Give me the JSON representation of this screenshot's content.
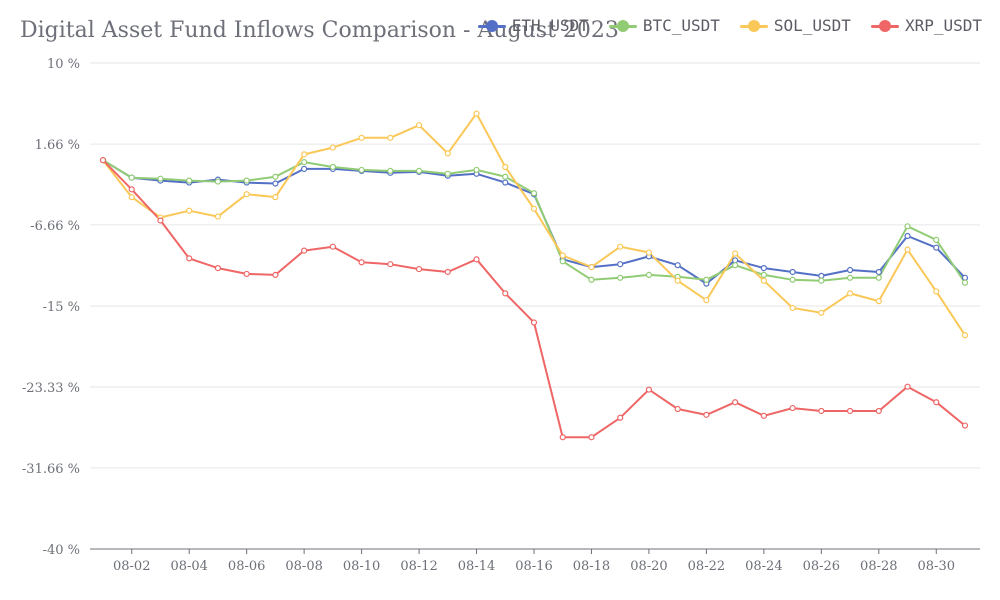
{
  "chart_data": {
    "type": "line",
    "title": "Digital Asset Fund Inflows Comparison - August 2023",
    "ylim": [
      -40,
      10
    ],
    "y_ticks": [
      "10 %",
      "1.66 %",
      "-6.66 %",
      "-15 %",
      "-23.33 %",
      "-31.66 %",
      "-40 %"
    ],
    "y_tick_values": [
      10,
      1.66,
      -6.66,
      -15,
      -23.33,
      -31.66,
      -40
    ],
    "x": [
      "2023-08-01",
      "2023-08-02",
      "2023-08-03",
      "2023-08-04",
      "2023-08-05",
      "2023-08-06",
      "2023-08-07",
      "2023-08-08",
      "2023-08-09",
      "2023-08-10",
      "2023-08-11",
      "2023-08-12",
      "2023-08-13",
      "2023-08-14",
      "2023-08-15",
      "2023-08-16",
      "2023-08-17",
      "2023-08-18",
      "2023-08-19",
      "2023-08-20",
      "2023-08-21",
      "2023-08-22",
      "2023-08-23",
      "2023-08-24",
      "2023-08-25",
      "2023-08-26",
      "2023-08-27",
      "2023-08-28",
      "2023-08-29",
      "2023-08-30",
      "2023-08-31"
    ],
    "x_ticks": [
      "08-02",
      "08-04",
      "08-06",
      "08-08",
      "08-10",
      "08-12",
      "08-14",
      "08-16",
      "08-18",
      "08-20",
      "08-22",
      "08-24",
      "08-26",
      "08-28",
      "08-30"
    ],
    "grid": true,
    "legend_position": "top-right",
    "series": [
      {
        "name": "ETH_USDT",
        "color": "#5470c6",
        "values": [
          0,
          -1.8,
          -2.1,
          -2.3,
          -2.0,
          -2.3,
          -2.4,
          -0.9,
          -0.9,
          -1.1,
          -1.3,
          -1.2,
          -1.6,
          -1.4,
          -2.3,
          -3.5,
          -10.2,
          -11.0,
          -10.7,
          -9.9,
          -10.8,
          -12.7,
          -10.3,
          -11.1,
          -11.5,
          -11.9,
          -11.3,
          -11.5,
          -7.8,
          -9.0,
          -12.1
        ]
      },
      {
        "name": "BTC_USDT",
        "color": "#91cc75",
        "values": [
          0,
          -1.8,
          -1.9,
          -2.1,
          -2.2,
          -2.1,
          -1.7,
          -0.2,
          -0.7,
          -1.0,
          -1.1,
          -1.1,
          -1.4,
          -1.0,
          -1.7,
          -3.4,
          -10.4,
          -12.3,
          -12.1,
          -11.8,
          -12.0,
          -12.3,
          -10.8,
          -11.8,
          -12.3,
          -12.4,
          -12.1,
          -12.1,
          -6.8,
          -8.2,
          -12.6
        ]
      },
      {
        "name": "SOL_USDT",
        "color": "#fac858",
        "values": [
          0,
          -3.8,
          -5.9,
          -5.2,
          -5.8,
          -3.5,
          -3.8,
          0.6,
          1.3,
          2.3,
          2.3,
          3.6,
          0.7,
          4.8,
          -0.7,
          -5.0,
          -9.8,
          -11.0,
          -8.9,
          -9.5,
          -12.4,
          -14.4,
          -9.6,
          -12.4,
          -15.2,
          -15.7,
          -13.7,
          -14.5,
          -9.2,
          -13.5,
          -18.0
        ]
      },
      {
        "name": "XRP_USDT",
        "color": "#ee6666",
        "values": [
          0,
          -3.0,
          -6.2,
          -10.1,
          -11.1,
          -11.7,
          -11.8,
          -9.3,
          -8.9,
          -10.5,
          -10.7,
          -11.2,
          -11.5,
          -10.2,
          -13.7,
          -16.7,
          -28.5,
          -28.5,
          -26.5,
          -23.6,
          -25.6,
          -26.2,
          -24.9,
          -26.3,
          -25.5,
          -25.8,
          -25.8,
          -25.8,
          -23.3,
          -24.9,
          -27.3
        ]
      }
    ]
  }
}
